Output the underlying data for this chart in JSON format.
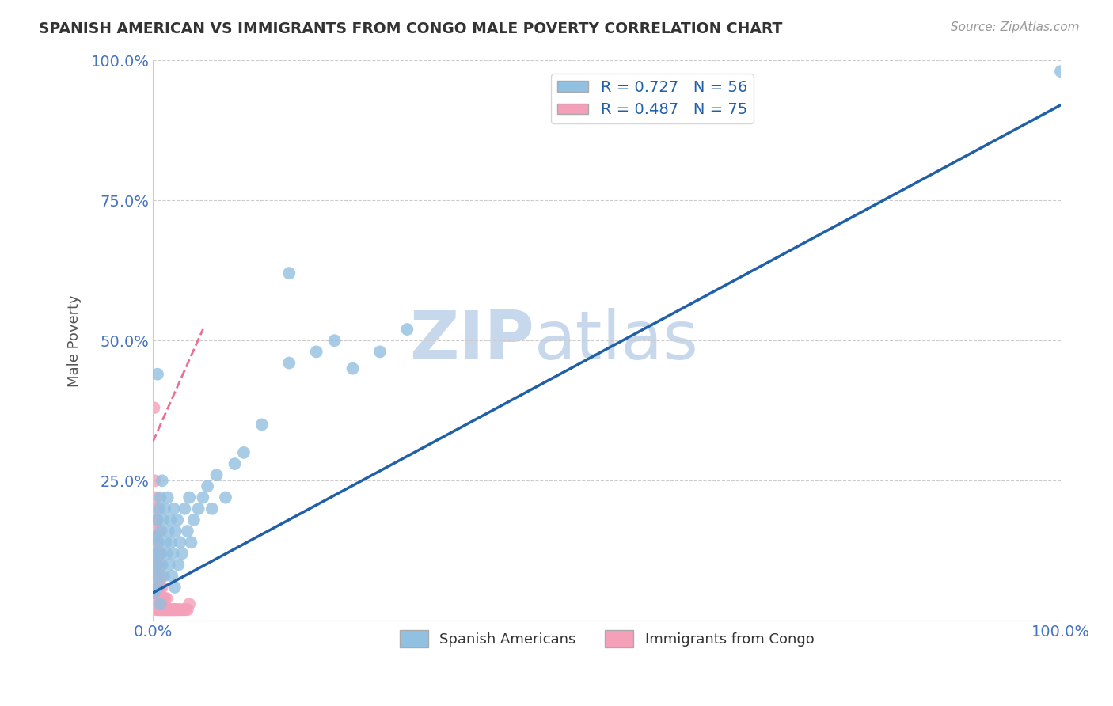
{
  "title": "SPANISH AMERICAN VS IMMIGRANTS FROM CONGO MALE POVERTY CORRELATION CHART",
  "source": "Source: ZipAtlas.com",
  "xlabel": "",
  "ylabel": "Male Poverty",
  "watermark_zip": "ZIP",
  "watermark_atlas": "atlas",
  "xlim": [
    0,
    1.0
  ],
  "ylim": [
    0,
    1.0
  ],
  "xticks": [
    0.0,
    0.25,
    0.5,
    0.75,
    1.0
  ],
  "xticklabels": [
    "0.0%",
    "",
    "",
    "",
    "100.0%"
  ],
  "yticks": [
    0.0,
    0.25,
    0.5,
    0.75,
    1.0
  ],
  "yticklabels": [
    "",
    "25.0%",
    "50.0%",
    "75.0%",
    "100.0%"
  ],
  "blue_R": 0.727,
  "blue_N": 56,
  "pink_R": 0.487,
  "pink_N": 75,
  "blue_color": "#92C0E0",
  "pink_color": "#F4A0B8",
  "blue_line_color": "#2060A8",
  "pink_line_color": "#E87090",
  "legend_labels": [
    "Spanish Americans",
    "Immigrants from Congo"
  ],
  "blue_scatter_x": [
    0.001,
    0.002,
    0.003,
    0.003,
    0.004,
    0.005,
    0.005,
    0.006,
    0.007,
    0.008,
    0.008,
    0.009,
    0.01,
    0.01,
    0.011,
    0.012,
    0.013,
    0.014,
    0.015,
    0.016,
    0.017,
    0.018,
    0.019,
    0.02,
    0.021,
    0.022,
    0.023,
    0.024,
    0.025,
    0.027,
    0.028,
    0.03,
    0.032,
    0.035,
    0.038,
    0.04,
    0.042,
    0.045,
    0.05,
    0.055,
    0.06,
    0.065,
    0.07,
    0.08,
    0.09,
    0.1,
    0.12,
    0.15,
    0.18,
    0.2,
    0.22,
    0.25,
    0.28,
    0.15,
    0.005,
    0.008,
    1.0
  ],
  "blue_scatter_y": [
    0.05,
    0.12,
    0.08,
    0.15,
    0.1,
    0.18,
    0.06,
    0.14,
    0.2,
    0.12,
    0.22,
    0.16,
    0.1,
    0.25,
    0.18,
    0.08,
    0.2,
    0.14,
    0.12,
    0.22,
    0.16,
    0.1,
    0.18,
    0.14,
    0.08,
    0.12,
    0.2,
    0.06,
    0.16,
    0.18,
    0.1,
    0.14,
    0.12,
    0.2,
    0.16,
    0.22,
    0.14,
    0.18,
    0.2,
    0.22,
    0.24,
    0.2,
    0.26,
    0.22,
    0.28,
    0.3,
    0.35,
    0.62,
    0.48,
    0.5,
    0.45,
    0.48,
    0.52,
    0.46,
    0.44,
    0.03,
    0.98
  ],
  "pink_scatter_x": [
    0.001,
    0.001,
    0.001,
    0.002,
    0.002,
    0.002,
    0.002,
    0.003,
    0.003,
    0.003,
    0.003,
    0.004,
    0.004,
    0.004,
    0.004,
    0.005,
    0.005,
    0.005,
    0.005,
    0.006,
    0.006,
    0.006,
    0.007,
    0.007,
    0.007,
    0.008,
    0.008,
    0.008,
    0.009,
    0.009,
    0.01,
    0.01,
    0.01,
    0.011,
    0.011,
    0.012,
    0.012,
    0.013,
    0.013,
    0.014,
    0.015,
    0.015,
    0.016,
    0.017,
    0.018,
    0.019,
    0.02,
    0.021,
    0.022,
    0.023,
    0.024,
    0.025,
    0.026,
    0.027,
    0.028,
    0.03,
    0.032,
    0.034,
    0.036,
    0.038,
    0.001,
    0.002,
    0.003,
    0.004,
    0.005,
    0.006,
    0.007,
    0.008,
    0.009,
    0.01,
    0.002,
    0.003,
    0.004,
    0.001,
    0.04
  ],
  "pink_scatter_y": [
    0.05,
    0.08,
    0.12,
    0.04,
    0.07,
    0.1,
    0.14,
    0.03,
    0.06,
    0.09,
    0.12,
    0.02,
    0.05,
    0.08,
    0.11,
    0.02,
    0.04,
    0.07,
    0.1,
    0.02,
    0.05,
    0.08,
    0.02,
    0.04,
    0.07,
    0.02,
    0.04,
    0.06,
    0.02,
    0.04,
    0.02,
    0.04,
    0.06,
    0.02,
    0.04,
    0.02,
    0.04,
    0.02,
    0.04,
    0.02,
    0.02,
    0.04,
    0.02,
    0.02,
    0.02,
    0.02,
    0.02,
    0.02,
    0.02,
    0.02,
    0.02,
    0.02,
    0.02,
    0.02,
    0.02,
    0.02,
    0.02,
    0.02,
    0.02,
    0.02,
    0.15,
    0.18,
    0.22,
    0.16,
    0.14,
    0.12,
    0.16,
    0.1,
    0.12,
    0.08,
    0.25,
    0.2,
    0.18,
    0.38,
    0.03
  ],
  "blue_line_x": [
    0.0,
    1.0
  ],
  "blue_line_y": [
    0.05,
    0.92
  ],
  "pink_line_x": [
    0.0,
    0.055
  ],
  "pink_line_y": [
    0.32,
    0.52
  ]
}
